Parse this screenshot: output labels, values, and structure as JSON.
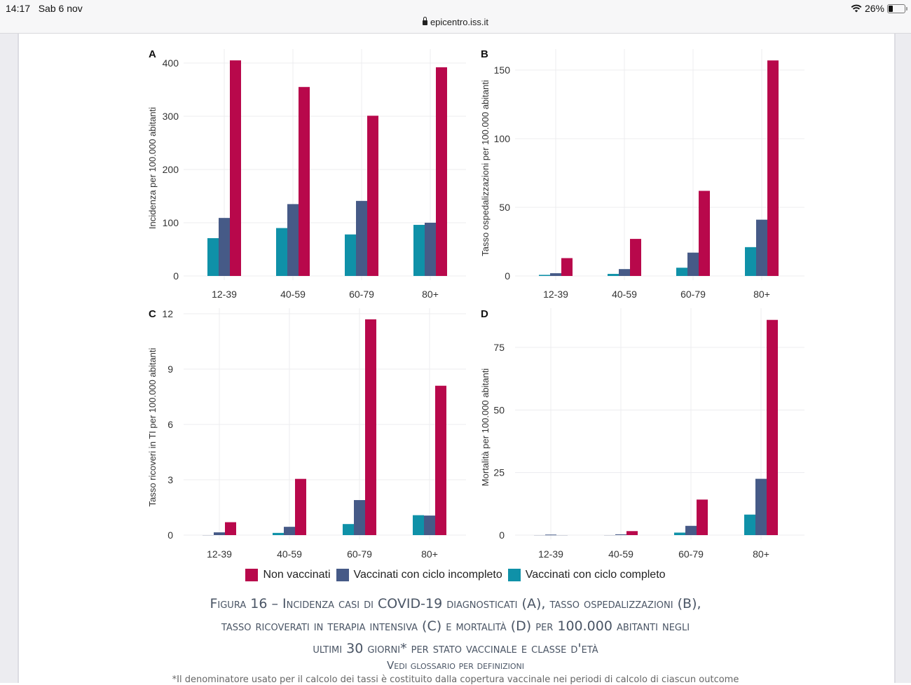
{
  "status_bar": {
    "time": "14:17",
    "date": "Sab 6 nov",
    "wifi_icon": "wifi-icon",
    "battery_percent": "26%",
    "battery_level": 0.26,
    "url": "epicentro.iss.it"
  },
  "colors": {
    "non_vaccinati": "#b8084b",
    "incompleto": "#465a87",
    "completo": "#0f91a8"
  },
  "legend": [
    {
      "label": "Non vaccinati",
      "color": "#b8084b"
    },
    {
      "label": "Vaccinati con ciclo incompleto",
      "color": "#465a87"
    },
    {
      "label": "Vaccinati con ciclo completo",
      "color": "#0f91a8"
    }
  ],
  "caption": {
    "title_line1": "Figura 16 – Incidenza casi di COVID-19 diagnosticati (A), tasso ospedalizzazioni (B),",
    "title_line2": "tasso ricoverati in terapia intensiva (C) e mortalità (D) per 100.000 abitanti negli",
    "title_line3": "ultimi 30 giorni* per stato vaccinale e classe d'età",
    "subtitle": "Vedi glossario per definizioni",
    "note": "*Il denominatore usato per il calcolo dei tassi è costituito dalla copertura vaccinale nei periodi di calcolo di ciascun outcome"
  },
  "chart_data": [
    {
      "panel": "A",
      "type": "bar",
      "ylabel": "Incidenza per 100.000 abitanti",
      "categories": [
        "12-39",
        "40-59",
        "60-79",
        "80+"
      ],
      "yticks": [
        0,
        100,
        200,
        300,
        400
      ],
      "ylim": [
        0,
        405
      ],
      "grid": true,
      "series": [
        {
          "name": "Vaccinati con ciclo completo",
          "values": [
            71,
            90,
            78,
            96
          ]
        },
        {
          "name": "Vaccinati con ciclo incompleto",
          "values": [
            109,
            135,
            141,
            100
          ]
        },
        {
          "name": "Non vaccinati",
          "values": [
            405,
            355,
            301,
            392
          ]
        }
      ]
    },
    {
      "panel": "B",
      "type": "bar",
      "ylabel": "Tasso ospedalizzazioni per 100.000 abitanti",
      "categories": [
        "12-39",
        "40-59",
        "60-79",
        "80+"
      ],
      "yticks": [
        0,
        50,
        100,
        150
      ],
      "ylim": [
        0,
        157
      ],
      "grid": true,
      "series": [
        {
          "name": "Vaccinati con ciclo completo",
          "values": [
            0.8,
            1.5,
            6,
            21
          ]
        },
        {
          "name": "Vaccinati con ciclo incompleto",
          "values": [
            2,
            5,
            17,
            41
          ]
        },
        {
          "name": "Non vaccinati",
          "values": [
            13,
            27,
            62,
            157
          ]
        }
      ]
    },
    {
      "panel": "C",
      "type": "bar",
      "ylabel": "Tasso ricoveri in TI per 100.000 abitanti",
      "categories": [
        "12-39",
        "40-59",
        "60-79",
        "80+"
      ],
      "yticks": [
        0,
        3,
        6,
        9,
        12
      ],
      "ylim": [
        0,
        12
      ],
      "grid": true,
      "series": [
        {
          "name": "Vaccinati con ciclo completo",
          "values": [
            0,
            0.12,
            0.6,
            1.08
          ]
        },
        {
          "name": "Vaccinati con ciclo incompleto",
          "values": [
            0.15,
            0.45,
            1.9,
            1.06
          ]
        },
        {
          "name": "Non vaccinati",
          "values": [
            0.7,
            3.05,
            11.7,
            8.1
          ]
        }
      ]
    },
    {
      "panel": "D",
      "type": "bar",
      "ylabel": "Mortalità per 100.000 abitanti",
      "categories": [
        "12-39",
        "40-59",
        "60-79",
        "80+"
      ],
      "yticks": [
        0,
        25,
        50,
        75
      ],
      "ylim": [
        0,
        86
      ],
      "grid": true,
      "series": [
        {
          "name": "Vaccinati con ciclo completo",
          "values": [
            0,
            0,
            1,
            8.2
          ]
        },
        {
          "name": "Vaccinati con ciclo incompleto",
          "values": [
            0.2,
            0.3,
            3.7,
            22.5
          ]
        },
        {
          "name": "Non vaccinati",
          "values": [
            0,
            1.6,
            14.2,
            86
          ]
        }
      ]
    }
  ]
}
